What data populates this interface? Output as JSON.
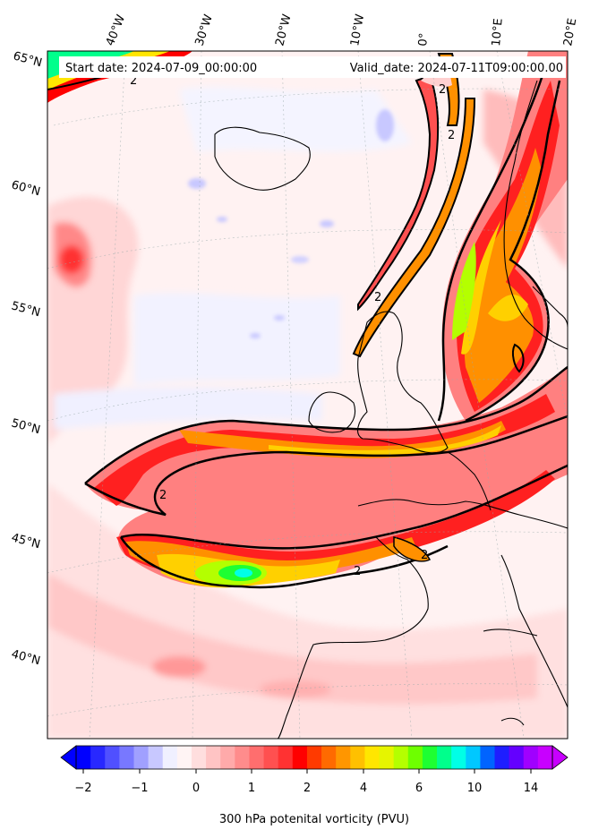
{
  "header": {
    "start_date": "Start date: 2024-07-09_00:00:00",
    "valid_date": "Valid_date: 2024-07-11T09:00:00.00"
  },
  "lon_labels": [
    "40°W",
    "30°W",
    "20°W",
    "10°W",
    "0°",
    "10°E",
    "20°E"
  ],
  "lat_labels": [
    "65°N",
    "60°N",
    "55°N",
    "50°N",
    "45°N",
    "40°N"
  ],
  "contour_label": "2",
  "colorbar": {
    "label": "300 hPa potenital vorticity (PVU)",
    "ticks": [
      "−2",
      "−1",
      "0",
      "1",
      "2",
      "4",
      "6",
      "10",
      "14"
    ],
    "colors": [
      "#0000ff",
      "#2828ff",
      "#5050ff",
      "#7878ff",
      "#a0a0ff",
      "#c8c8ff",
      "#f0f0ff",
      "#fff4f4",
      "#ffdede",
      "#ffc4c4",
      "#ffaaaa",
      "#ff8c8c",
      "#ff6e6e",
      "#ff5050",
      "#ff3232",
      "#ff0000",
      "#ff3a00",
      "#ff6a00",
      "#ff9600",
      "#ffc000",
      "#ffe600",
      "#e6f500",
      "#b4ff00",
      "#6eff00",
      "#1eff32",
      "#00ff8c",
      "#00ffe6",
      "#00c8ff",
      "#0064ff",
      "#1e1eff",
      "#6400ff",
      "#a000ff",
      "#c800ff"
    ]
  }
}
